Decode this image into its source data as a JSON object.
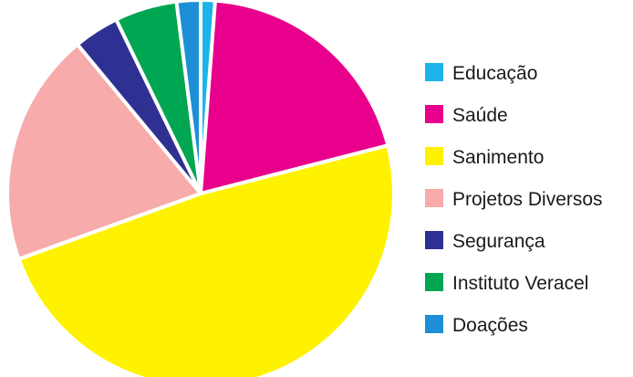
{
  "chart_data": {
    "type": "pie",
    "title": "",
    "legend_position": "right",
    "slices": [
      {
        "label": "Educação",
        "value": 1.2,
        "color": "#1cb4e8"
      },
      {
        "label": "Saúde",
        "value": 19.8,
        "color": "#e8008c"
      },
      {
        "label": "Sanimento",
        "value": 48.5,
        "color": "#fff200"
      },
      {
        "label": "Projetos Diversos",
        "value": 19.5,
        "color": "#f7abab"
      },
      {
        "label": "Segurança",
        "value": 3.8,
        "color": "#2e3192"
      },
      {
        "label": "Instituto Veracel",
        "value": 5.2,
        "color": "#00a651"
      },
      {
        "label": "Doações",
        "value": 2.0,
        "color": "#1c8fd6"
      }
    ]
  }
}
